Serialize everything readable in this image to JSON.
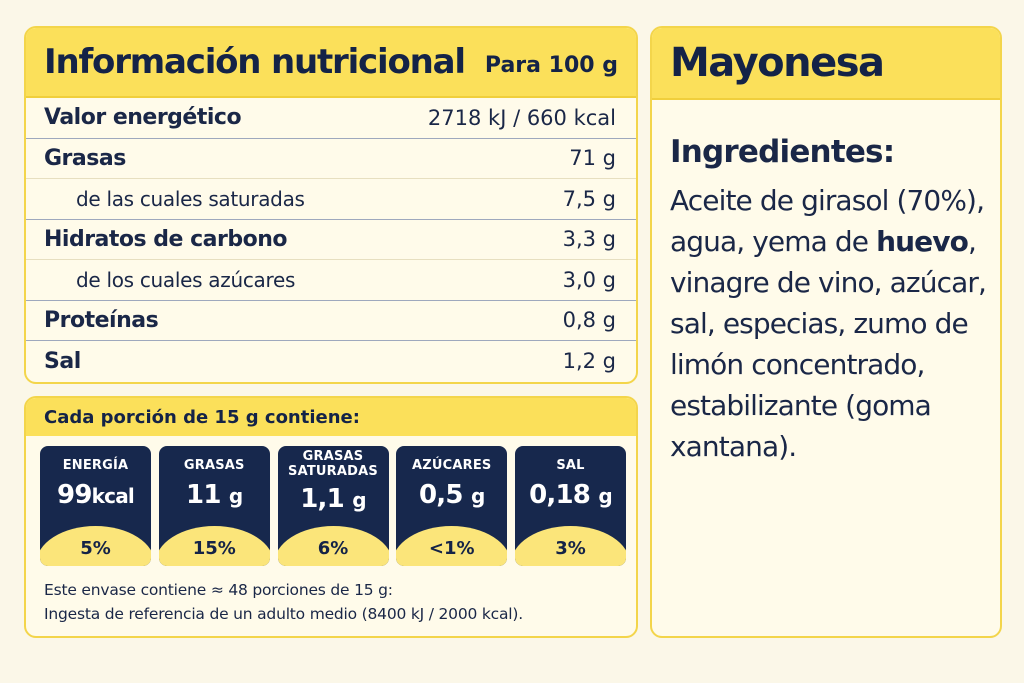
{
  "nutrition": {
    "title": "Información nutricional",
    "per": "Para 100 g",
    "rows": [
      {
        "label": "Valor energético",
        "value": "2718 kJ / 660 kcal"
      },
      {
        "label": "Grasas",
        "value": "71 g"
      },
      {
        "label": "de las cuales saturadas",
        "value": "7,5 g"
      },
      {
        "label": "Hidratos de carbono",
        "value": "3,3 g"
      },
      {
        "label": "de los cuales azúcares",
        "value": "3,0 g"
      },
      {
        "label": "Proteínas",
        "value": "0,8 g"
      },
      {
        "label": "Sal",
        "value": "1,2 g"
      }
    ]
  },
  "portion": {
    "title": "Cada porción de 15 g contiene:",
    "tiles": [
      {
        "label": "ENERGÍA",
        "value": "99",
        "unit": "kcal",
        "percent": "5%"
      },
      {
        "label": "GRASAS",
        "value": "11",
        "unit": "g",
        "percent": "15%"
      },
      {
        "label_line1": "GRASAS",
        "label_line2": "SATURADAS",
        "value": "1,1",
        "unit": "g",
        "percent": "6%"
      },
      {
        "label": "AZÚCARES",
        "value": "0,5",
        "unit": "g",
        "percent": "<1%"
      },
      {
        "label": "SAL",
        "value": "0,18",
        "unit": "g",
        "percent": "3%"
      }
    ],
    "note_line1": "Este envase contiene ≈ 48 porciones de 15 g:",
    "note_line2": "Ingesta de referencia de un adulto medio (8400 kJ / 2000 kcal)."
  },
  "product": {
    "name": "Mayonesa",
    "ingredients_title": "Ingredientes:",
    "ingredients_before": "Aceite de girasol (70%), agua, yema de ",
    "ingredients_allergen": "huevo",
    "ingredients_after": ", vinagre de vino, azúcar, sal, especias, zumo de limón concentrado, estabilizante (goma xantana)."
  },
  "colors": {
    "header_yellow": "#fbe05a",
    "navy": "#17284d",
    "card_bg": "#fffbea"
  }
}
